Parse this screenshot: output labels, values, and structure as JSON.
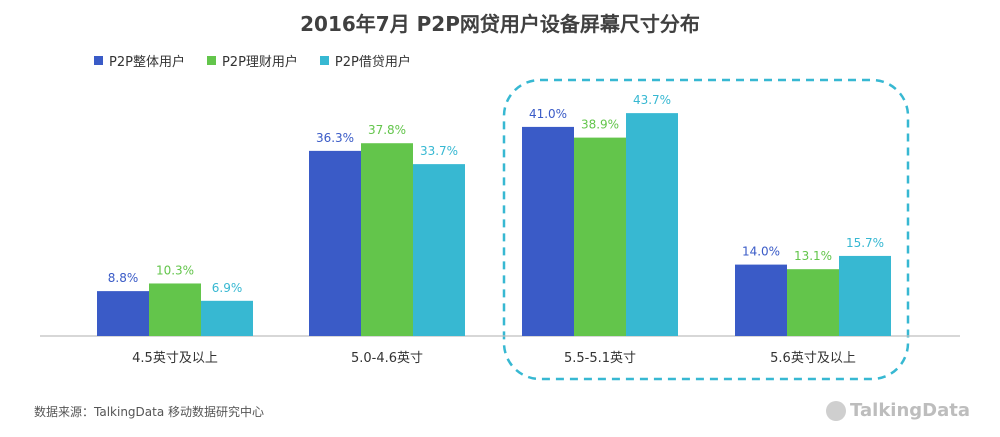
{
  "chart_data": {
    "type": "bar",
    "title": "2016年7月  P2P网贷用户设备屏幕尺寸分布",
    "categories": [
      "4.5英寸及以上",
      "5.0-4.6英寸",
      "5.5-5.1英寸",
      "5.6英寸及以上"
    ],
    "series": [
      {
        "name": "P2P整体用户",
        "values": [
          8.8,
          36.3,
          41.0,
          14.0
        ],
        "color": "#3a5bc7"
      },
      {
        "name": "P2P理财用户",
        "values": [
          10.3,
          37.8,
          38.9,
          13.1
        ],
        "color": "#63c54b"
      },
      {
        "name": "P2P借贷用户",
        "values": [
          6.9,
          33.7,
          43.7,
          15.7
        ],
        "color": "#37b8d2"
      }
    ],
    "value_suffix": "%",
    "highlight_categories": [
      "5.5-5.1英寸",
      "5.6英寸及以上"
    ],
    "highlight_color": "#37b8d2",
    "axis_color": "#bfbfbf",
    "legend_position": "top-left",
    "grid": false
  },
  "footer": {
    "source": "数据来源：TalkingData 移动数据研究中心",
    "brand": "TalkingData"
  }
}
